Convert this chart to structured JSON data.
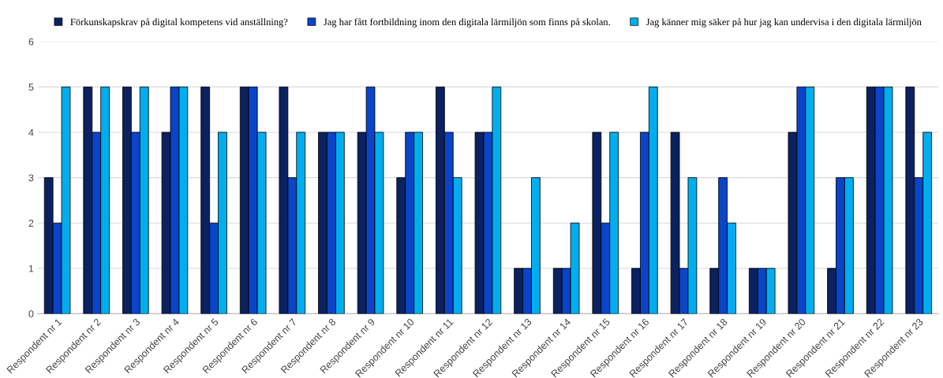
{
  "chart_data": {
    "type": "bar",
    "categories": [
      "Respondent nr 1",
      "Respondent nr 2",
      "Respondent nr 3",
      "Respondent nr 4",
      "Respondent nr 5",
      "Respondent nr 6",
      "Respondent nr 7",
      "Respondent nr 8",
      "Respondent nr 9",
      "Respondent nr 10",
      "Respondent nr 11",
      "Respondent nr 12",
      "Respondent nr 13",
      "Respondent nr 14",
      "Respondent nr 15",
      "Respondent nr 16",
      "Respondent nr 17",
      "Respondent nr 18",
      "Respondent nr 19",
      "Respondent nr 20",
      "Respondent nr 21",
      "Respondent nr 22",
      "Respondent nr 23"
    ],
    "series": [
      {
        "name": "Förkunskapskrav på digital kompetens vid anställning?",
        "color": "#0b2160",
        "values": [
          3,
          5,
          5,
          4,
          5,
          5,
          5,
          4,
          4,
          3,
          5,
          4,
          1,
          1,
          4,
          1,
          4,
          1,
          1,
          4,
          1,
          5,
          5
        ]
      },
      {
        "name": "Jag har fått fortbildning inom den digitala lärmiljön som finns på skolan.",
        "color": "#0a44c8",
        "values": [
          2,
          4,
          4,
          5,
          2,
          5,
          3,
          4,
          5,
          4,
          4,
          4,
          1,
          1,
          2,
          4,
          1,
          3,
          1,
          5,
          3,
          5,
          3
        ]
      },
      {
        "name": "Jag känner mig säker på hur jag kan undervisa i den digitala lärmiljön",
        "color": "#00aeef",
        "values": [
          5,
          5,
          5,
          5,
          4,
          4,
          4,
          4,
          4,
          4,
          3,
          5,
          3,
          2,
          4,
          5,
          3,
          2,
          1,
          5,
          3,
          5,
          4
        ]
      }
    ],
    "ylim": [
      0,
      6
    ],
    "yticks": [
      0,
      1,
      2,
      3,
      4,
      5,
      6
    ],
    "grid": "y",
    "legend": "top"
  }
}
